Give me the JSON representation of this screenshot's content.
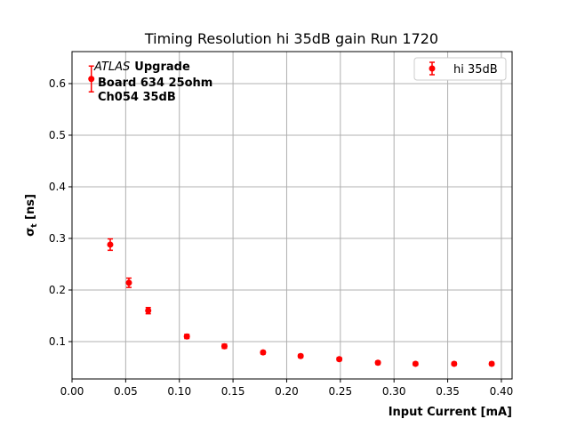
{
  "chart_data": {
    "type": "scatter",
    "title": "Timing Resolution hi 35dB gain Run 1720",
    "xlabel": "Input Current [mA]",
    "ylabel": "σ_t [ns]",
    "ylabel_main": "σ",
    "ylabel_sub": "t",
    "ylabel_unit": " [ns]",
    "xlim": [
      0,
      0.41
    ],
    "ylim": [
      0.0276,
      0.662
    ],
    "xticks": [
      "0.00",
      "0.05",
      "0.10",
      "0.15",
      "0.20",
      "0.25",
      "0.30",
      "0.35",
      "0.40"
    ],
    "yticks": [
      "0.1",
      "0.2",
      "0.3",
      "0.4",
      "0.5",
      "0.6"
    ],
    "grid": true,
    "legend": {
      "position": "top-right",
      "entries": [
        "hi 35dB"
      ]
    },
    "annotation": {
      "italic": "ATLAS",
      "bold1": "Upgrade",
      "line2": "Board 634 25ohm",
      "line3": "Ch054 35dB"
    },
    "color": "#ff0000",
    "series": [
      {
        "name": "hi 35dB",
        "x": [
          0.018,
          0.0356,
          0.053,
          0.071,
          0.107,
          0.142,
          0.178,
          0.213,
          0.249,
          0.285,
          0.32,
          0.356,
          0.391
        ],
        "y": [
          0.609,
          0.288,
          0.214,
          0.16,
          0.11,
          0.091,
          0.079,
          0.072,
          0.066,
          0.059,
          0.057,
          0.057,
          0.057
        ],
        "yerr": [
          0.025,
          0.011,
          0.009,
          0.006,
          0.004,
          0.004,
          0.003,
          0.003,
          0.003,
          0.003,
          0.003,
          0.003,
          0.003
        ]
      }
    ]
  }
}
